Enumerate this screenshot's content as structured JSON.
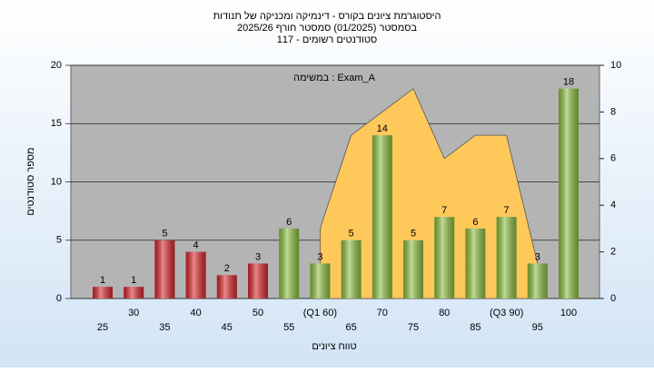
{
  "chart_data": {
    "type": "bar",
    "title": "היסטוגרמת ציונים בקורס - דינמיקה ומכניקה של תנודות",
    "subtitle": "בסמסטר  (01/2025)  סמסטר חורף 2025/26",
    "subtitle2": "סטודנטים רשומים - 117",
    "annotation": "במשימה : Exam_A",
    "xlabel": "טווח ציונים",
    "ylabel": "מספר סטודנטים",
    "categories": [
      "25",
      "30",
      "35",
      "40",
      "45",
      "50",
      "55",
      "(Q1 60)",
      "65",
      "70",
      "75",
      "80",
      "85",
      "(Q3 90)",
      "95",
      "100"
    ],
    "series": [
      {
        "values": [
          1,
          1,
          5,
          4,
          2,
          3,
          6,
          3,
          5,
          14,
          5,
          7,
          6,
          7,
          3,
          18
        ],
        "colors": [
          "#d8262c",
          "#d8262c",
          "#d8262c",
          "#d8262c",
          "#d8262c",
          "#d8262c",
          "#8cbf3f",
          "#8cbf3f",
          "#8cbf3f",
          "#8cbf3f",
          "#8cbf3f",
          "#8cbf3f",
          "#8cbf3f",
          "#8cbf3f",
          "#8cbf3f",
          "#8cbf3f"
        ]
      },
      {
        "type": "area",
        "axis": "y2",
        "color": "#ffc85a",
        "values": [
          null,
          null,
          null,
          null,
          null,
          null,
          null,
          3,
          7,
          8,
          9,
          6,
          7,
          7,
          1.5,
          null
        ]
      }
    ],
    "ylim": [
      0,
      20
    ],
    "yticks": [
      0,
      5,
      10,
      15,
      20
    ],
    "y2lim": [
      0,
      10
    ],
    "y2ticks": [
      0,
      2,
      4,
      6,
      8,
      10
    ],
    "grid": true
  }
}
